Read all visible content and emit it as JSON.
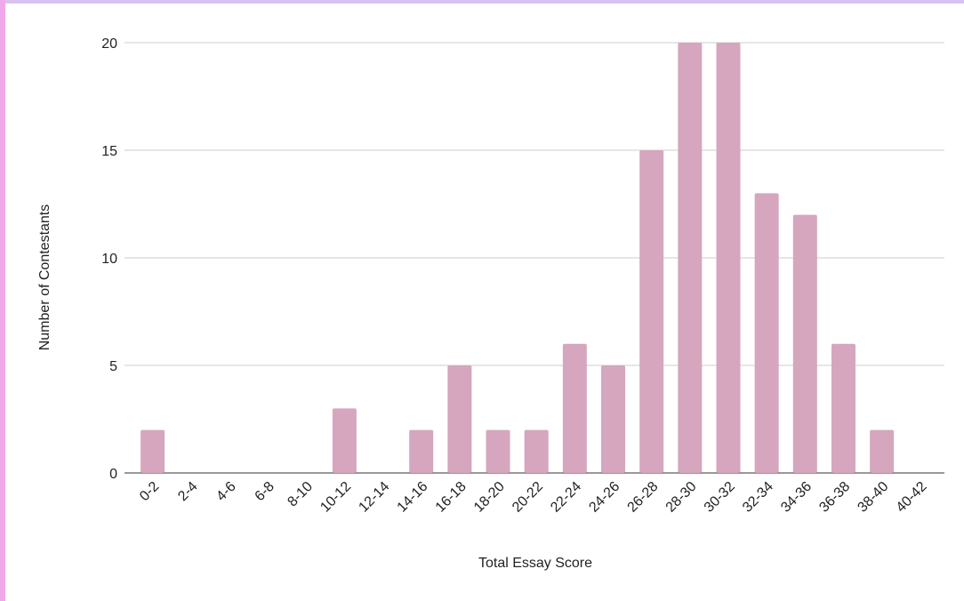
{
  "chart_data": {
    "type": "bar",
    "x_label": "Total Essay Score",
    "y_label": "Number of Contestants",
    "categories": [
      "0-2",
      "2-4",
      "4-6",
      "6-8",
      "8-10",
      "10-12",
      "12-14",
      "14-16",
      "16-18",
      "18-20",
      "20-22",
      "22-24",
      "24-26",
      "26-28",
      "28-30",
      "30-32",
      "32-34",
      "34-36",
      "36-38",
      "38-40",
      "40-42"
    ],
    "values": [
      2,
      0,
      0,
      0,
      0,
      3,
      0,
      2,
      5,
      2,
      2,
      6,
      5,
      15,
      20,
      20,
      13,
      12,
      6,
      2,
      0
    ],
    "color": "#d5a6bd",
    "ylim": [
      0,
      20
    ],
    "yticks": [
      0,
      5,
      10,
      15,
      20
    ],
    "grid": true
  }
}
